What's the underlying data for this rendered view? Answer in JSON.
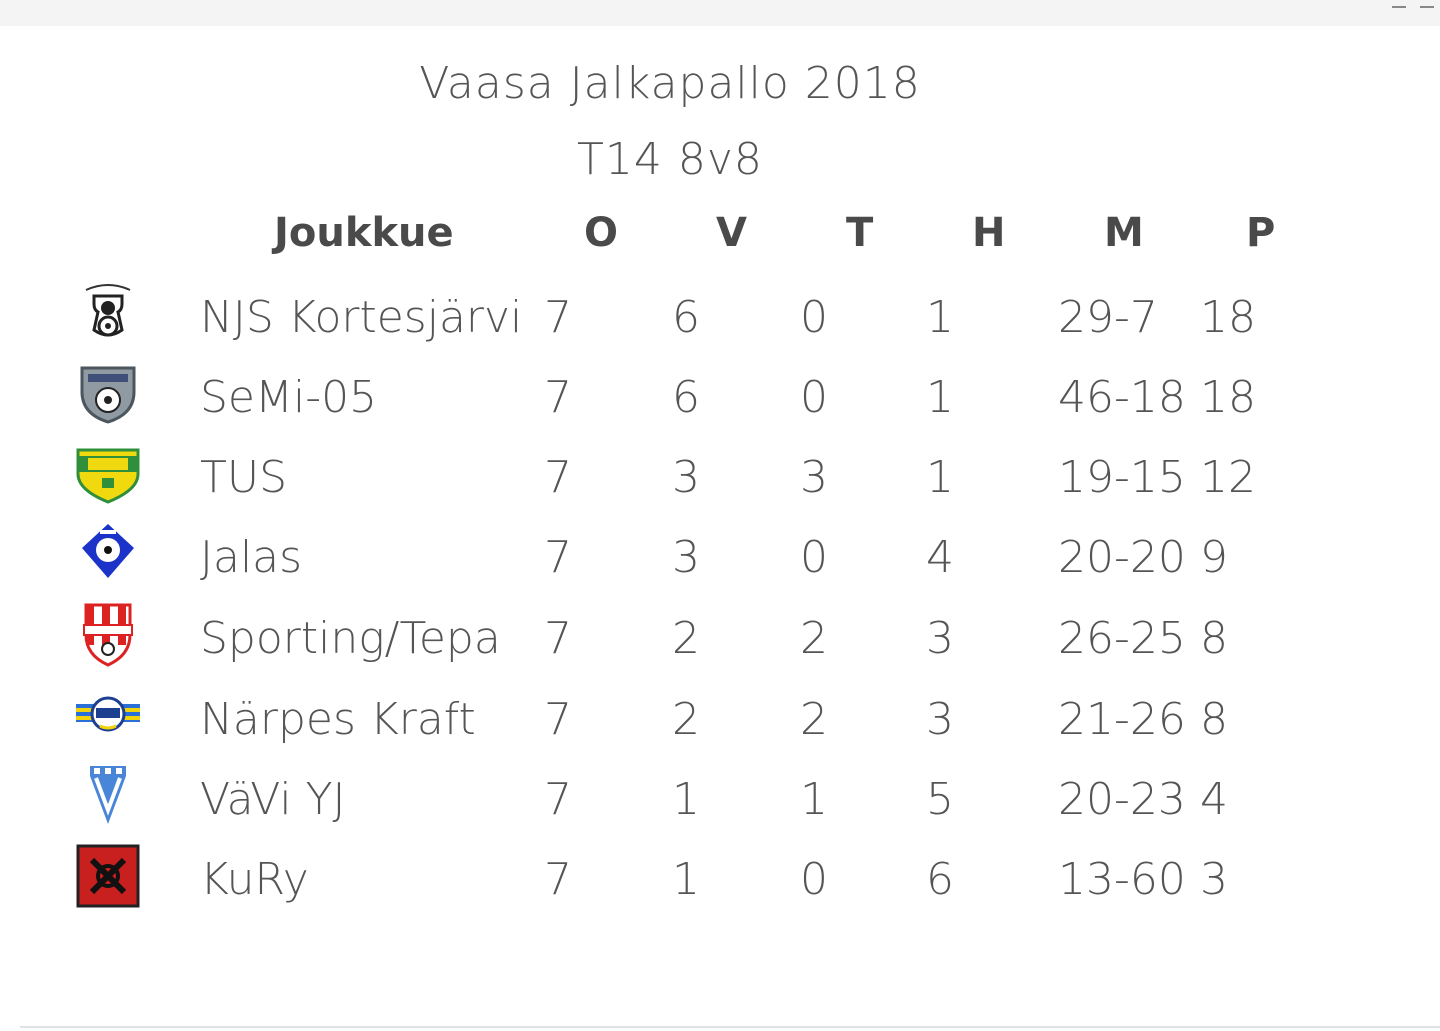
{
  "title": "Vaasa Jalkapallo 2018",
  "subtitle": "T14 8v8",
  "columns": {
    "team": "Joukkue",
    "o": "O",
    "v": "V",
    "t": "T",
    "h": "H",
    "m": "M",
    "p": "P"
  },
  "rows": [
    {
      "team": "NJS Kortesjärvi",
      "o": "7",
      "v": "6",
      "t": "0",
      "h": "1",
      "m": "29-7",
      "p": "18",
      "logo": "njs-logo"
    },
    {
      "team": "SeMi-05",
      "o": "7",
      "v": "6",
      "t": "0",
      "h": "1",
      "m": "46-18",
      "p": "18",
      "logo": "semi-logo"
    },
    {
      "team": "TUS",
      "o": "7",
      "v": "3",
      "t": "3",
      "h": "1",
      "m": "19-15",
      "p": "12",
      "logo": "tus-logo"
    },
    {
      "team": "Jalas",
      "o": "7",
      "v": "3",
      "t": "0",
      "h": "4",
      "m": "20-20",
      "p": "9",
      "logo": "jalas-logo"
    },
    {
      "team": "Sporting/Tepa",
      "o": "7",
      "v": "2",
      "t": "2",
      "h": "3",
      "m": "26-25",
      "p": "8",
      "logo": "sporting-logo"
    },
    {
      "team": "Närpes Kraft",
      "o": "7",
      "v": "2",
      "t": "2",
      "h": "3",
      "m": "21-26",
      "p": "8",
      "logo": "narpes-logo"
    },
    {
      "team": "VäVi YJ",
      "o": "7",
      "v": "1",
      "t": "1",
      "h": "5",
      "m": "20-23",
      "p": "4",
      "logo": "vavi-logo"
    },
    {
      "team": "KuRy",
      "o": "7",
      "v": "1",
      "t": "0",
      "h": "6",
      "m": "13-60",
      "p": "3",
      "logo": "kury-logo"
    }
  ]
}
